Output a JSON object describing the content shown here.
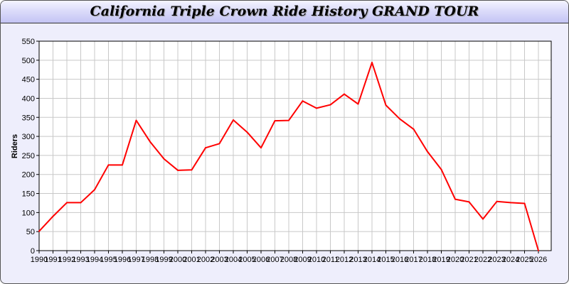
{
  "chart_data": {
    "type": "line",
    "title": "California Triple Crown Ride History GRAND TOUR",
    "xlabel": "",
    "ylabel": "Riders",
    "ylim": [
      0,
      550
    ],
    "yticks": [
      0,
      50,
      100,
      150,
      200,
      250,
      300,
      350,
      400,
      450,
      500,
      550
    ],
    "grid": true,
    "line_color": "#ff0000",
    "x": [
      1990,
      1991,
      1992,
      1993,
      1994,
      1995,
      1996,
      1997,
      1998,
      1999,
      2000,
      2001,
      2002,
      2003,
      2004,
      2005,
      2006,
      2007,
      2008,
      2009,
      2010,
      2011,
      2012,
      2013,
      2014,
      2015,
      2016,
      2017,
      2018,
      2019,
      2020,
      2021,
      2022,
      2023,
      2024,
      2025,
      2026
    ],
    "values": [
      51,
      90,
      126,
      126,
      160,
      225,
      225,
      342,
      286,
      241,
      211,
      212,
      270,
      281,
      343,
      311,
      270,
      341,
      342,
      393,
      374,
      383,
      411,
      385,
      494,
      382,
      346,
      319,
      260,
      213,
      135,
      128,
      83,
      129,
      126,
      124,
      0
    ]
  }
}
